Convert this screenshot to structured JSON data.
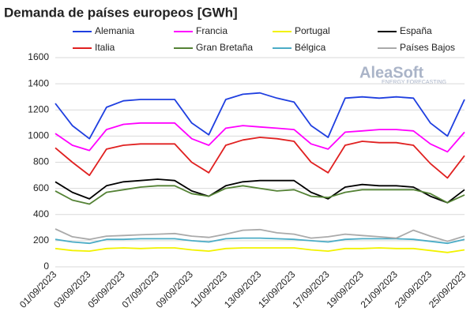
{
  "chart_data": {
    "type": "line",
    "title": "Demanda de países europeos [GWh]",
    "watermark": "AleaSoft",
    "watermark_sub": "ENERGY FORECASTING",
    "categories": [
      "01/09/2023",
      null,
      "03/09/2023",
      null,
      "05/09/2023",
      null,
      "07/09/2023",
      null,
      "09/09/2023",
      null,
      "11/09/2023",
      null,
      "13/09/2023",
      null,
      "15/09/2023",
      null,
      "17/09/2023",
      null,
      "19/09/2023",
      null,
      "21/09/2023",
      null,
      "23/09/2023",
      null,
      "25/09/2023"
    ],
    "series": [
      {
        "name": "Alemania",
        "color": "#1f3fe0",
        "values": [
          1250,
          1080,
          980,
          1220,
          1270,
          1280,
          1280,
          1280,
          1100,
          1010,
          1280,
          1320,
          1330,
          1290,
          1260,
          1080,
          990,
          1290,
          1300,
          1290,
          1300,
          1290,
          1100,
          1000,
          1280
        ]
      },
      {
        "name": "Francia",
        "color": "#ff00ff",
        "values": [
          1020,
          930,
          890,
          1050,
          1090,
          1100,
          1100,
          1100,
          980,
          930,
          1060,
          1080,
          1070,
          1060,
          1050,
          940,
          900,
          1030,
          1040,
          1050,
          1050,
          1040,
          940,
          880,
          1030
        ]
      },
      {
        "name": "Portugal",
        "color": "#f2f200",
        "values": [
          140,
          125,
          120,
          140,
          145,
          140,
          145,
          145,
          130,
          120,
          140,
          145,
          145,
          145,
          145,
          130,
          120,
          140,
          140,
          145,
          140,
          140,
          125,
          110,
          130
        ]
      },
      {
        "name": "España",
        "color": "#000000",
        "values": [
          650,
          570,
          520,
          620,
          650,
          660,
          670,
          660,
          580,
          540,
          620,
          650,
          660,
          660,
          660,
          570,
          520,
          610,
          630,
          620,
          620,
          610,
          540,
          490,
          590
        ]
      },
      {
        "name": "Italia",
        "color": "#e02020",
        "values": [
          910,
          800,
          700,
          900,
          930,
          940,
          940,
          940,
          800,
          720,
          930,
          970,
          990,
          980,
          960,
          800,
          720,
          930,
          960,
          950,
          950,
          930,
          790,
          680,
          850
        ]
      },
      {
        "name": "Gran Bretaña",
        "color": "#548235",
        "values": [
          580,
          510,
          480,
          570,
          590,
          610,
          620,
          620,
          560,
          540,
          600,
          620,
          600,
          580,
          590,
          540,
          530,
          570,
          590,
          590,
          590,
          590,
          560,
          490,
          550
        ]
      },
      {
        "name": "Bélgica",
        "color": "#4bacc6",
        "values": [
          210,
          190,
          180,
          210,
          210,
          215,
          215,
          215,
          200,
          190,
          215,
          220,
          220,
          215,
          210,
          200,
          190,
          210,
          215,
          215,
          215,
          210,
          195,
          180,
          210
        ]
      },
      {
        "name": "Países Bajos",
        "color": "#aaaaaa",
        "values": [
          290,
          230,
          210,
          235,
          240,
          245,
          250,
          255,
          235,
          225,
          250,
          280,
          285,
          260,
          250,
          220,
          230,
          250,
          240,
          230,
          220,
          280,
          235,
          195,
          235
        ]
      }
    ],
    "ylim": [
      0,
      1600
    ],
    "yticks": [
      0,
      200,
      400,
      600,
      800,
      1000,
      1200,
      1400,
      1600
    ],
    "grid": true
  }
}
